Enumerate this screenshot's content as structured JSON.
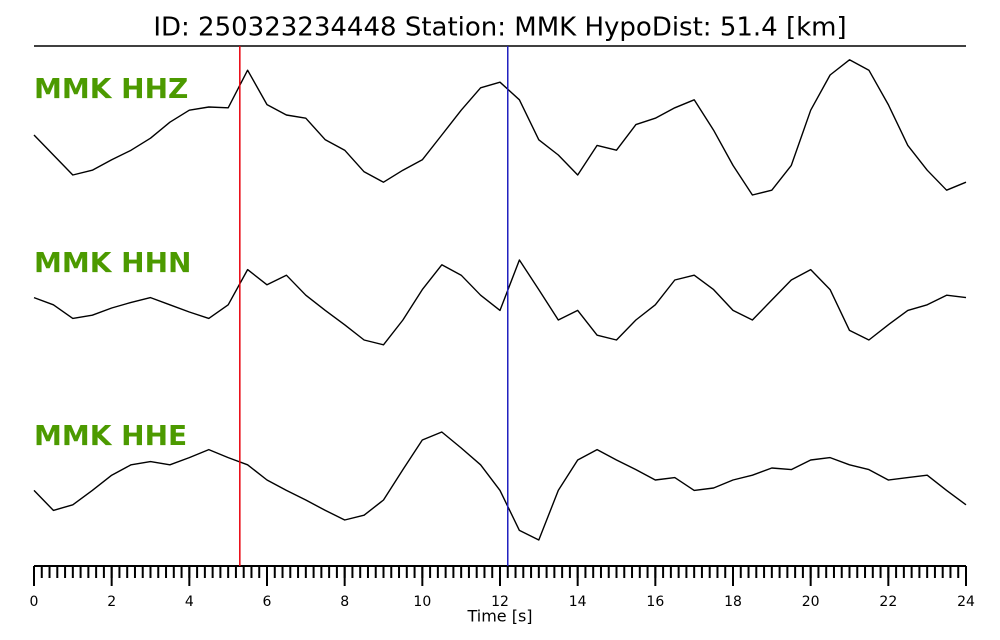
{
  "chart_data": {
    "type": "line",
    "title": "ID: 250323234448   Station: MMK   HypoDist:    51.4 [km]",
    "x_label": "Time [s]",
    "xlim": [
      0,
      24
    ],
    "xticks": [
      0,
      2,
      4,
      6,
      8,
      10,
      12,
      14,
      16,
      18,
      20,
      22,
      24
    ],
    "xminor": 0.2,
    "ylim": [
      -1,
      1
    ],
    "label_color": "#4c9a00",
    "markers": [
      {
        "x": 5.3,
        "color": "#e8000b"
      },
      {
        "x": 12.2,
        "color": "#1f1fbf"
      }
    ],
    "x": [
      0,
      0.5,
      1,
      1.5,
      2,
      2.5,
      3,
      3.5,
      4,
      4.5,
      5,
      5.5,
      6,
      6.5,
      7,
      7.5,
      8,
      8.5,
      9,
      9.5,
      10,
      10.5,
      11,
      11.5,
      12,
      12.5,
      13,
      13.5,
      14,
      14.5,
      15,
      15.5,
      16,
      16.5,
      17,
      17.5,
      18,
      18.5,
      19,
      19.5,
      20,
      20.5,
      21,
      21.5,
      22,
      22.5,
      23,
      23.5,
      24
    ],
    "series": [
      {
        "name": "MMK HHZ",
        "color": "#000000",
        "values": [
          0,
          -0.25,
          -0.5,
          -0.44,
          -0.31,
          -0.19,
          -0.04,
          0.16,
          0.31,
          0.35,
          0.34,
          0.81,
          0.38,
          0.25,
          0.21,
          -0.06,
          -0.19,
          -0.46,
          -0.59,
          -0.44,
          -0.31,
          0,
          0.31,
          0.59,
          0.66,
          0.44,
          -0.06,
          -0.25,
          -0.5,
          -0.13,
          -0.19,
          0.13,
          0.21,
          0.34,
          0.44,
          0.06,
          -0.38,
          -0.75,
          -0.69,
          -0.38,
          0.31,
          0.75,
          0.94,
          0.81,
          0.38,
          -0.13,
          -0.44,
          -0.69,
          -0.59
        ]
      },
      {
        "name": "MMK HHN",
        "color": "#000000",
        "values": [
          0.03,
          -0.06,
          -0.23,
          -0.19,
          -0.1,
          -0.03,
          0.03,
          -0.06,
          -0.15,
          -0.23,
          -0.06,
          0.38,
          0.19,
          0.31,
          0.06,
          -0.13,
          -0.31,
          -0.5,
          -0.56,
          -0.25,
          0.13,
          0.44,
          0.31,
          0.06,
          -0.13,
          0.5,
          0.13,
          -0.25,
          -0.13,
          -0.44,
          -0.5,
          -0.25,
          -0.06,
          0.25,
          0.31,
          0.13,
          -0.13,
          -0.25,
          0,
          0.25,
          0.38,
          0.13,
          -0.38,
          -0.5,
          -0.31,
          -0.13,
          -0.06,
          0.06,
          0.03
        ]
      },
      {
        "name": "MMK HHE",
        "color": "#000000",
        "values": [
          -0.13,
          -0.38,
          -0.31,
          -0.13,
          0.06,
          0.19,
          0.23,
          0.19,
          0.28,
          0.38,
          0.28,
          0.19,
          0,
          -0.13,
          -0.25,
          -0.38,
          -0.5,
          -0.44,
          -0.25,
          0.13,
          0.5,
          0.6,
          0.4,
          0.19,
          -0.13,
          -0.63,
          -0.75,
          -0.13,
          0.25,
          0.38,
          0.25,
          0.13,
          0,
          0.03,
          -0.13,
          -0.1,
          0,
          0.06,
          0.15,
          0.13,
          0.25,
          0.28,
          0.19,
          0.13,
          0,
          0.03,
          0.06,
          -0.13,
          -0.31
        ]
      }
    ]
  }
}
